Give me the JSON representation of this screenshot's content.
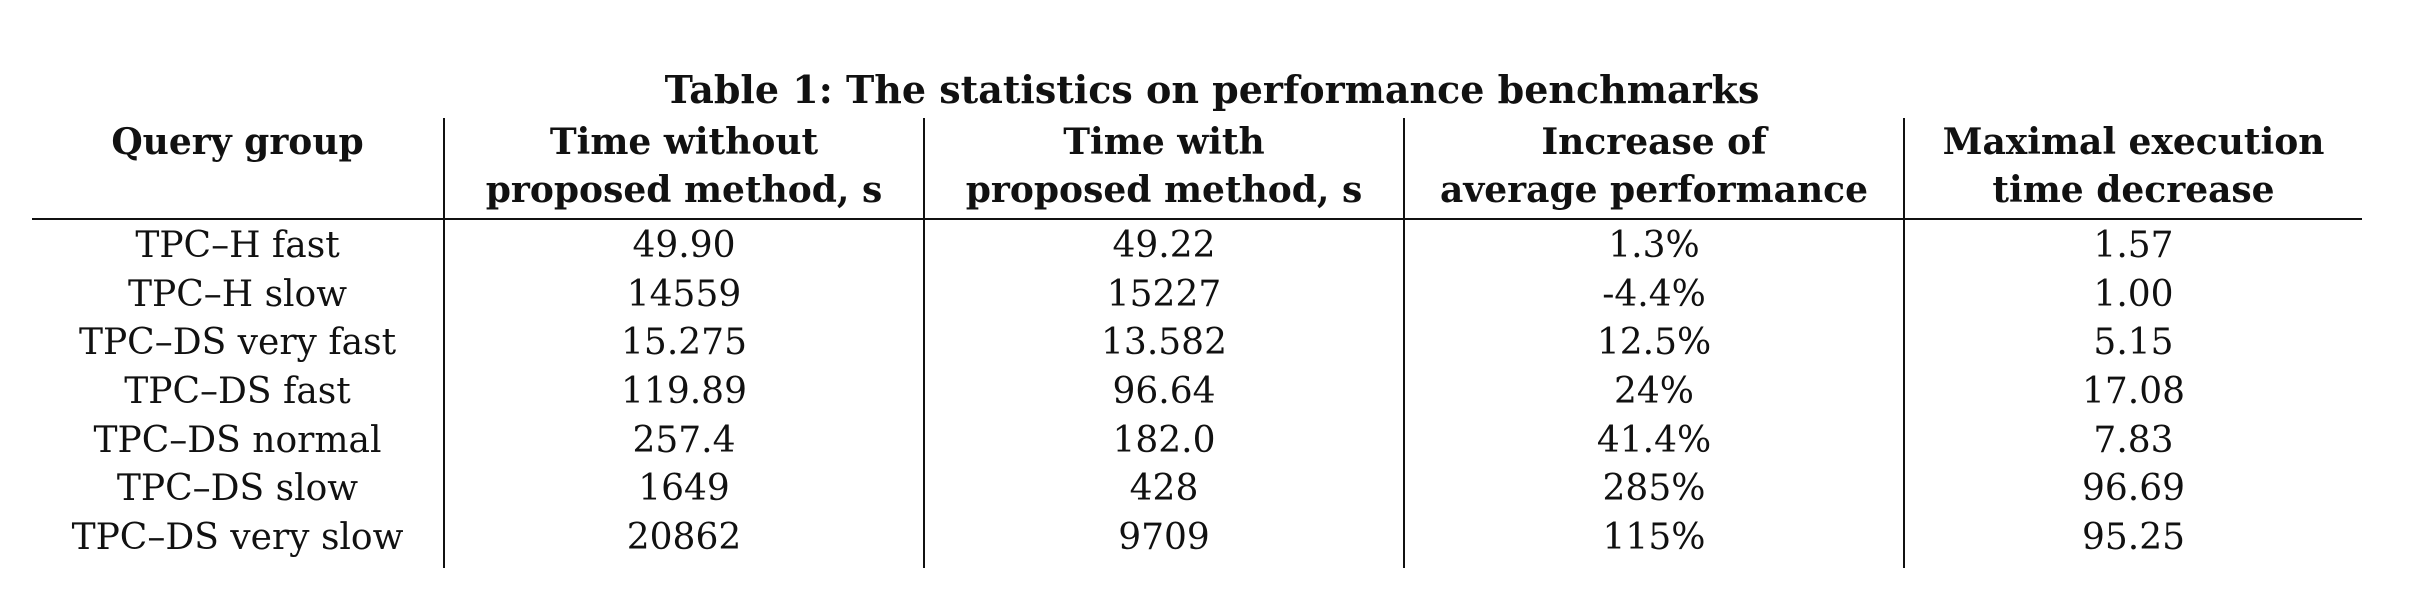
{
  "caption": "Table 1: The statistics on performance benchmarks",
  "headers": [
    {
      "line1": "Query group",
      "line2": ""
    },
    {
      "line1": "Time without",
      "line2": "proposed method, s"
    },
    {
      "line1": "Time with",
      "line2": "proposed method, s"
    },
    {
      "line1": "Increase of",
      "line2": "average performance"
    },
    {
      "line1": "Maximal execution",
      "line2": "time decrease"
    }
  ],
  "rows": [
    [
      "TPC–H fast",
      "49.90",
      "49.22",
      "1.3%",
      "1.57"
    ],
    [
      "TPC–H slow",
      "14559",
      "15227",
      "-4.4%",
      "1.00"
    ],
    [
      "TPC–DS very fast",
      "15.275",
      "13.582",
      "12.5%",
      "5.15"
    ],
    [
      "TPC–DS fast",
      "119.89",
      "96.64",
      "24%",
      "17.08"
    ],
    [
      "TPC–DS normal",
      "257.4",
      "182.0",
      "41.4%",
      "7.83"
    ],
    [
      "TPC–DS slow",
      "1649",
      "428",
      "285%",
      "96.69"
    ],
    [
      "TPC–DS very slow",
      "20862",
      "9709",
      "115%",
      "95.25"
    ]
  ]
}
